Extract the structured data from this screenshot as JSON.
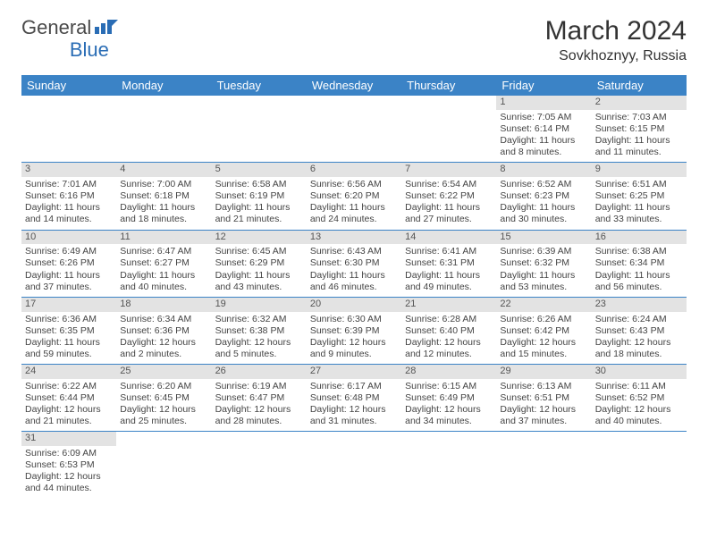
{
  "logo": {
    "text1": "General",
    "text2": "Blue"
  },
  "title": "March 2024",
  "location": "Sovkhoznyy, Russia",
  "colors": {
    "header_bg": "#3b83c6",
    "header_text": "#ffffff",
    "daynum_bg": "#e3e3e3",
    "row_border": "#3b83c6",
    "logo_blue": "#2a6db5",
    "text": "#333333"
  },
  "weekdays": [
    "Sunday",
    "Monday",
    "Tuesday",
    "Wednesday",
    "Thursday",
    "Friday",
    "Saturday"
  ],
  "weeks": [
    [
      null,
      null,
      null,
      null,
      null,
      {
        "n": "1",
        "sr": "Sunrise: 7:05 AM",
        "ss": "Sunset: 6:14 PM",
        "d1": "Daylight: 11 hours",
        "d2": "and 8 minutes."
      },
      {
        "n": "2",
        "sr": "Sunrise: 7:03 AM",
        "ss": "Sunset: 6:15 PM",
        "d1": "Daylight: 11 hours",
        "d2": "and 11 minutes."
      }
    ],
    [
      {
        "n": "3",
        "sr": "Sunrise: 7:01 AM",
        "ss": "Sunset: 6:16 PM",
        "d1": "Daylight: 11 hours",
        "d2": "and 14 minutes."
      },
      {
        "n": "4",
        "sr": "Sunrise: 7:00 AM",
        "ss": "Sunset: 6:18 PM",
        "d1": "Daylight: 11 hours",
        "d2": "and 18 minutes."
      },
      {
        "n": "5",
        "sr": "Sunrise: 6:58 AM",
        "ss": "Sunset: 6:19 PM",
        "d1": "Daylight: 11 hours",
        "d2": "and 21 minutes."
      },
      {
        "n": "6",
        "sr": "Sunrise: 6:56 AM",
        "ss": "Sunset: 6:20 PM",
        "d1": "Daylight: 11 hours",
        "d2": "and 24 minutes."
      },
      {
        "n": "7",
        "sr": "Sunrise: 6:54 AM",
        "ss": "Sunset: 6:22 PM",
        "d1": "Daylight: 11 hours",
        "d2": "and 27 minutes."
      },
      {
        "n": "8",
        "sr": "Sunrise: 6:52 AM",
        "ss": "Sunset: 6:23 PM",
        "d1": "Daylight: 11 hours",
        "d2": "and 30 minutes."
      },
      {
        "n": "9",
        "sr": "Sunrise: 6:51 AM",
        "ss": "Sunset: 6:25 PM",
        "d1": "Daylight: 11 hours",
        "d2": "and 33 minutes."
      }
    ],
    [
      {
        "n": "10",
        "sr": "Sunrise: 6:49 AM",
        "ss": "Sunset: 6:26 PM",
        "d1": "Daylight: 11 hours",
        "d2": "and 37 minutes."
      },
      {
        "n": "11",
        "sr": "Sunrise: 6:47 AM",
        "ss": "Sunset: 6:27 PM",
        "d1": "Daylight: 11 hours",
        "d2": "and 40 minutes."
      },
      {
        "n": "12",
        "sr": "Sunrise: 6:45 AM",
        "ss": "Sunset: 6:29 PM",
        "d1": "Daylight: 11 hours",
        "d2": "and 43 minutes."
      },
      {
        "n": "13",
        "sr": "Sunrise: 6:43 AM",
        "ss": "Sunset: 6:30 PM",
        "d1": "Daylight: 11 hours",
        "d2": "and 46 minutes."
      },
      {
        "n": "14",
        "sr": "Sunrise: 6:41 AM",
        "ss": "Sunset: 6:31 PM",
        "d1": "Daylight: 11 hours",
        "d2": "and 49 minutes."
      },
      {
        "n": "15",
        "sr": "Sunrise: 6:39 AM",
        "ss": "Sunset: 6:32 PM",
        "d1": "Daylight: 11 hours",
        "d2": "and 53 minutes."
      },
      {
        "n": "16",
        "sr": "Sunrise: 6:38 AM",
        "ss": "Sunset: 6:34 PM",
        "d1": "Daylight: 11 hours",
        "d2": "and 56 minutes."
      }
    ],
    [
      {
        "n": "17",
        "sr": "Sunrise: 6:36 AM",
        "ss": "Sunset: 6:35 PM",
        "d1": "Daylight: 11 hours",
        "d2": "and 59 minutes."
      },
      {
        "n": "18",
        "sr": "Sunrise: 6:34 AM",
        "ss": "Sunset: 6:36 PM",
        "d1": "Daylight: 12 hours",
        "d2": "and 2 minutes."
      },
      {
        "n": "19",
        "sr": "Sunrise: 6:32 AM",
        "ss": "Sunset: 6:38 PM",
        "d1": "Daylight: 12 hours",
        "d2": "and 5 minutes."
      },
      {
        "n": "20",
        "sr": "Sunrise: 6:30 AM",
        "ss": "Sunset: 6:39 PM",
        "d1": "Daylight: 12 hours",
        "d2": "and 9 minutes."
      },
      {
        "n": "21",
        "sr": "Sunrise: 6:28 AM",
        "ss": "Sunset: 6:40 PM",
        "d1": "Daylight: 12 hours",
        "d2": "and 12 minutes."
      },
      {
        "n": "22",
        "sr": "Sunrise: 6:26 AM",
        "ss": "Sunset: 6:42 PM",
        "d1": "Daylight: 12 hours",
        "d2": "and 15 minutes."
      },
      {
        "n": "23",
        "sr": "Sunrise: 6:24 AM",
        "ss": "Sunset: 6:43 PM",
        "d1": "Daylight: 12 hours",
        "d2": "and 18 minutes."
      }
    ],
    [
      {
        "n": "24",
        "sr": "Sunrise: 6:22 AM",
        "ss": "Sunset: 6:44 PM",
        "d1": "Daylight: 12 hours",
        "d2": "and 21 minutes."
      },
      {
        "n": "25",
        "sr": "Sunrise: 6:20 AM",
        "ss": "Sunset: 6:45 PM",
        "d1": "Daylight: 12 hours",
        "d2": "and 25 minutes."
      },
      {
        "n": "26",
        "sr": "Sunrise: 6:19 AM",
        "ss": "Sunset: 6:47 PM",
        "d1": "Daylight: 12 hours",
        "d2": "and 28 minutes."
      },
      {
        "n": "27",
        "sr": "Sunrise: 6:17 AM",
        "ss": "Sunset: 6:48 PM",
        "d1": "Daylight: 12 hours",
        "d2": "and 31 minutes."
      },
      {
        "n": "28",
        "sr": "Sunrise: 6:15 AM",
        "ss": "Sunset: 6:49 PM",
        "d1": "Daylight: 12 hours",
        "d2": "and 34 minutes."
      },
      {
        "n": "29",
        "sr": "Sunrise: 6:13 AM",
        "ss": "Sunset: 6:51 PM",
        "d1": "Daylight: 12 hours",
        "d2": "and 37 minutes."
      },
      {
        "n": "30",
        "sr": "Sunrise: 6:11 AM",
        "ss": "Sunset: 6:52 PM",
        "d1": "Daylight: 12 hours",
        "d2": "and 40 minutes."
      }
    ],
    [
      {
        "n": "31",
        "sr": "Sunrise: 6:09 AM",
        "ss": "Sunset: 6:53 PM",
        "d1": "Daylight: 12 hours",
        "d2": "and 44 minutes."
      },
      null,
      null,
      null,
      null,
      null,
      null
    ]
  ]
}
